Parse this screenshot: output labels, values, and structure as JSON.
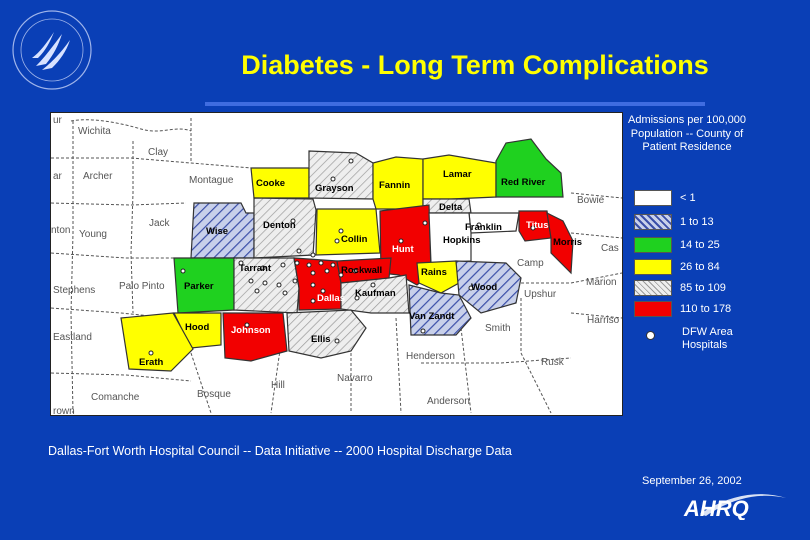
{
  "title": "Diabetes - Long Term Complications",
  "legend": {
    "title": "Admissions per 100,000 Population -- County of Patient Residence",
    "items": [
      {
        "label": "< 1",
        "color": "#ffffff",
        "pattern": "none"
      },
      {
        "label": "1 to 13",
        "color": "#c8d0ea",
        "pattern": "hatch-blue"
      },
      {
        "label": "14 to 25",
        "color": "#1fd11f",
        "pattern": "none"
      },
      {
        "label": "26 to 84",
        "color": "#ffff00",
        "pattern": "none"
      },
      {
        "label": "85 to 109",
        "color": "#e6e6e6",
        "pattern": "hatch-gray"
      },
      {
        "label": "110 to 178",
        "color": "#f20000",
        "pattern": "none"
      }
    ],
    "hospital_label": "DFW Area Hospitals"
  },
  "source": "Dallas-Fort Worth Hospital Council -- Data Initiative -- 2000 Hospital Discharge Data",
  "date": "September 26, 2002",
  "logo_text": "AHRQ",
  "map": {
    "colored_counties": [
      {
        "name": "Cooke",
        "category": "26 to 84"
      },
      {
        "name": "Grayson",
        "category": "85 to 109"
      },
      {
        "name": "Fannin",
        "category": "26 to 84"
      },
      {
        "name": "Lamar",
        "category": "26 to 84"
      },
      {
        "name": "Red River",
        "category": "14 to 25"
      },
      {
        "name": "Delta",
        "category": "85 to 109"
      },
      {
        "name": "Wise",
        "category": "1 to 13"
      },
      {
        "name": "Denton",
        "category": "85 to 109"
      },
      {
        "name": "Collin",
        "category": "26 to 84"
      },
      {
        "name": "Hunt",
        "category": "110 to 178"
      },
      {
        "name": "Franklin",
        "category": "< 1"
      },
      {
        "name": "Hopkins",
        "category": "< 1"
      },
      {
        "name": "Titus",
        "category": "110 to 178"
      },
      {
        "name": "Morris",
        "category": "110 to 178"
      },
      {
        "name": "Parker",
        "category": "14 to 25"
      },
      {
        "name": "Tarrant",
        "category": "85 to 109"
      },
      {
        "name": "Dallas",
        "category": "110 to 178"
      },
      {
        "name": "Rockwall",
        "category": "110 to 178"
      },
      {
        "name": "Rains",
        "category": "26 to 84"
      },
      {
        "name": "Wood",
        "category": "1 to 13"
      },
      {
        "name": "Kaufman",
        "category": "85 to 109"
      },
      {
        "name": "Van Zandt",
        "category": "1 to 13"
      },
      {
        "name": "Hood",
        "category": "26 to 84"
      },
      {
        "name": "Johnson",
        "category": "110 to 178"
      },
      {
        "name": "Ellis",
        "category": "85 to 109"
      },
      {
        "name": "Erath",
        "category": "26 to 84"
      }
    ],
    "background_counties": [
      "Wichita",
      "Clay",
      "Archer",
      "Montague",
      "Jack",
      "Young",
      "Palo Pinto",
      "Stephens",
      "Eastland",
      "Comanche",
      "Hill",
      "Bosque",
      "Navarro",
      "Henderson",
      "Anderson",
      "Rusk",
      "Smith",
      "Upshur",
      "Marion",
      "Harrison",
      "Camp",
      "Cass",
      "Bowie"
    ],
    "label_fragments": [
      "ur",
      "ar",
      "nton",
      "rown"
    ]
  }
}
